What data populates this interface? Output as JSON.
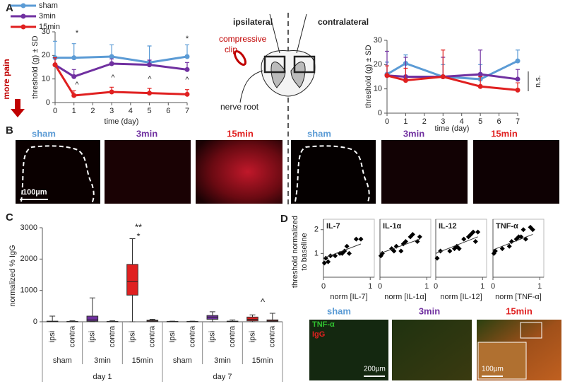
{
  "figure": {
    "panel_labels": [
      "A",
      "B",
      "C",
      "D"
    ],
    "more_pain": "more pain",
    "diagram": {
      "ipsilateral": "ipsilateral",
      "contralateral": "contralateral",
      "clip": [
        "compressive",
        "clip"
      ],
      "nerve_root": "nerve root"
    },
    "panel_b": {
      "labels": [
        "sham",
        "3min",
        "15min",
        "sham",
        "3min",
        "15min"
      ],
      "scale": "100µm"
    },
    "panel_d_images": {
      "labels": [
        "sham",
        "3min",
        "15min"
      ],
      "stains": [
        "TNF-α",
        "IgG"
      ],
      "scales": [
        "200µm",
        "100µm"
      ]
    }
  },
  "chart_data": [
    {
      "type": "line",
      "x": [
        0,
        1,
        3,
        5,
        7
      ],
      "xlim": [
        0,
        7
      ],
      "xticks": [
        0,
        1,
        2,
        3,
        4,
        5,
        6,
        7
      ],
      "ylim": [
        0,
        30
      ],
      "yticks": [
        0,
        10,
        20,
        30
      ],
      "x_label": "time (day)",
      "y_label": "threshold (g) ± SD",
      "legend": "top-left",
      "annotations": [
        "*",
        "*",
        "^",
        "^",
        "^",
        "^"
      ],
      "series": [
        {
          "name": "sham",
          "color": "#5b9bd5",
          "values": [
            19,
            19,
            19.5,
            17,
            19.5
          ],
          "errors": [
            7,
            6,
            5,
            7,
            5
          ]
        },
        {
          "name": "3min",
          "color": "#7030a0",
          "values": [
            16,
            11,
            16.5,
            16,
            14
          ],
          "errors": [
            3,
            3,
            2,
            2,
            3
          ]
        },
        {
          "name": "15min",
          "color": "#e02020",
          "values": [
            16,
            3,
            4.5,
            4,
            3.5
          ],
          "errors": [
            3,
            2,
            2,
            2,
            2
          ]
        }
      ]
    },
    {
      "type": "line",
      "x": [
        0,
        1,
        3,
        5,
        7
      ],
      "xlim": [
        0,
        7
      ],
      "xticks": [
        0,
        1,
        2,
        3,
        4,
        5,
        6,
        7
      ],
      "ylim": [
        0,
        30
      ],
      "yticks": [
        0,
        10,
        20,
        30
      ],
      "x_label": "time (day)",
      "y_label": "threshold (g) ± SD",
      "annotations": [
        "n.s."
      ],
      "series": [
        {
          "color": "#5b9bd5",
          "values": [
            16,
            20.5,
            15,
            14,
            21.5
          ],
          "errors": [
            5,
            3.5,
            5,
            6,
            4.5
          ]
        },
        {
          "color": "#7030a0",
          "values": [
            15.5,
            15,
            15,
            16,
            14
          ],
          "errors": [
            10,
            8,
            8,
            10,
            4
          ]
        },
        {
          "color": "#e02020",
          "values": [
            15.5,
            13.5,
            15,
            11,
            9.5
          ],
          "errors": [
            4,
            5,
            11,
            4,
            3
          ]
        }
      ]
    },
    {
      "type": "box",
      "categories": [
        "ipsi",
        "contra",
        "ipsi",
        "contra",
        "ipsi",
        "contra",
        "ipsi",
        "contra",
        "ipsi",
        "contra",
        "ipsi",
        "contra"
      ],
      "groups": [
        "sham",
        "3min",
        "15min",
        "sham",
        "3min",
        "15min"
      ],
      "days": [
        "day 1",
        "day 7"
      ],
      "colors": [
        "#9db8d9",
        "#9db8d9",
        "#7030a0",
        "#7030a0",
        "#e02020",
        "#e02020",
        "#9db8d9",
        "#9db8d9",
        "#7030a0",
        "#7030a0",
        "#e02020",
        "#e02020"
      ],
      "min": [
        0,
        0,
        0,
        0,
        0,
        0,
        0,
        0,
        0,
        0,
        0,
        0
      ],
      "q1": [
        0,
        0,
        20,
        0,
        850,
        10,
        0,
        0,
        80,
        0,
        30,
        10
      ],
      "median": [
        10,
        5,
        60,
        5,
        1280,
        30,
        5,
        5,
        150,
        10,
        80,
        30
      ],
      "q3": [
        20,
        10,
        180,
        10,
        1830,
        50,
        10,
        10,
        200,
        20,
        150,
        60
      ],
      "max": [
        180,
        30,
        760,
        30,
        2650,
        80,
        20,
        20,
        320,
        60,
        220,
        270
      ],
      "ylim": [
        0,
        3000
      ],
      "yticks": [
        0,
        1000,
        2000,
        3000
      ],
      "y_label": "normalized % IgG",
      "annotations": [
        "**",
        "*",
        "^"
      ]
    },
    {
      "type": "scatter",
      "title": "IL-7",
      "x_label": "norm [IL-7]",
      "y_label": [
        "threshold normalized",
        "to baseline"
      ],
      "xlim": [
        0,
        1
      ],
      "xticks": [
        0,
        1
      ],
      "ylim": [
        0,
        2.2
      ],
      "yticks": [
        1,
        2
      ],
      "x": [
        0.02,
        0.05,
        0.1,
        0.15,
        0.25,
        0.35,
        0.4,
        0.45,
        0.5,
        0.55,
        0.7,
        0.8
      ],
      "y": [
        0.6,
        0.8,
        0.65,
        0.9,
        0.9,
        1.0,
        1.0,
        1.1,
        1.3,
        1.0,
        1.6,
        1.6
      ],
      "fit": {
        "x": [
          0,
          0.8
        ],
        "y": [
          0.8,
          1.4
        ]
      }
    },
    {
      "type": "scatter",
      "title": "IL-1α",
      "x_label": "norm [IL-1α]",
      "xlim": [
        0,
        1
      ],
      "xticks": [
        0,
        1
      ],
      "ylim": [
        0,
        2.2
      ],
      "x": [
        0.02,
        0.05,
        0.25,
        0.3,
        0.35,
        0.45,
        0.5,
        0.55,
        0.65,
        0.7,
        0.8,
        0.85
      ],
      "y": [
        0.9,
        1.0,
        1.2,
        1.1,
        1.3,
        1.1,
        1.4,
        1.5,
        1.7,
        1.8,
        1.5,
        1.7
      ],
      "fit": {
        "x": [
          0,
          0.85
        ],
        "y": [
          1.0,
          1.6
        ]
      }
    },
    {
      "type": "scatter",
      "title": "IL-12",
      "x_label": "norm [IL-12]",
      "xlim": [
        0,
        1
      ],
      "xticks": [
        0,
        1
      ],
      "ylim": [
        0,
        2.2
      ],
      "x": [
        0.03,
        0.1,
        0.3,
        0.4,
        0.45,
        0.5,
        0.6,
        0.7,
        0.75,
        0.8,
        0.85,
        0.9
      ],
      "y": [
        0.8,
        1.1,
        1.1,
        1.2,
        1.3,
        1.2,
        1.6,
        1.7,
        1.8,
        1.9,
        1.5,
        1.9
      ],
      "fit": {
        "x": [
          0,
          0.9
        ],
        "y": [
          1.0,
          1.7
        ]
      }
    },
    {
      "type": "scatter",
      "title": "TNF-α",
      "x_label": "norm [TNF-α]",
      "xlim": [
        0,
        1
      ],
      "xticks": [
        0,
        1
      ],
      "ylim": [
        0,
        2.2
      ],
      "x": [
        0.02,
        0.05,
        0.2,
        0.35,
        0.4,
        0.5,
        0.55,
        0.6,
        0.65,
        0.7,
        0.8,
        0.85
      ],
      "y": [
        1.0,
        1.1,
        1.2,
        1.3,
        1.5,
        1.6,
        1.7,
        1.7,
        2.0,
        1.6,
        2.1,
        2.0
      ],
      "fit": {
        "x": [
          0,
          0.85
        ],
        "y": [
          1.15,
          1.8
        ]
      }
    }
  ]
}
